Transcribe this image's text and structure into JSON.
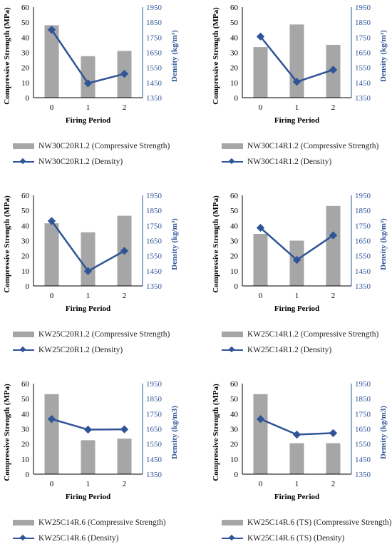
{
  "colors": {
    "bar": "#A6A6A6",
    "line": "#2F5597",
    "axis": "#000000",
    "right_axis_text": "#2F5597"
  },
  "chart_data": [
    {
      "type": "bar",
      "categories": [
        "0",
        "1",
        "2"
      ],
      "series": [
        {
          "name": "NW30C20R1.2 (Compressive Strength)",
          "kind": "bar",
          "axis": "left",
          "values": [
            48,
            27.5,
            31
          ]
        },
        {
          "name": "NW30C20R1.2 (Density)",
          "kind": "line",
          "axis": "right",
          "values": [
            1800,
            1445,
            1508
          ]
        }
      ],
      "xlabel": "Firing Period",
      "ylabel": "Compressive Strength (MPa)",
      "ylabel_right": "Density (kg/m³)",
      "ylim": [
        0,
        60
      ],
      "ylim_right": [
        1350,
        1950
      ],
      "yticks": [
        "0",
        "10",
        "20",
        "30",
        "40",
        "50",
        "60"
      ],
      "yticks_right": [
        "1350",
        "1450",
        "1550",
        "1650",
        "1750",
        "1850",
        "1950"
      ]
    },
    {
      "type": "bar",
      "categories": [
        "0",
        "1",
        "2"
      ],
      "series": [
        {
          "name": "NW30C14R1.2 (Compressive Strength)",
          "kind": "bar",
          "axis": "left",
          "values": [
            33.5,
            48.5,
            35
          ]
        },
        {
          "name": "NW30C14R1.2 (Density)",
          "kind": "line",
          "axis": "right",
          "values": [
            1755,
            1455,
            1535
          ]
        }
      ],
      "xlabel": "Firing Period",
      "ylabel": "Compressive Strength (MPa)",
      "ylabel_right": "Density (kg/m³)",
      "ylim": [
        0,
        60
      ],
      "ylim_right": [
        1350,
        1950
      ],
      "yticks": [
        "0",
        "10",
        "20",
        "30",
        "40",
        "50",
        "60"
      ],
      "yticks_right": [
        "1350",
        "1450",
        "1550",
        "1650",
        "1750",
        "1850",
        "1950"
      ]
    },
    {
      "type": "bar",
      "categories": [
        "0",
        "1",
        "2"
      ],
      "series": [
        {
          "name": "KW25C20R1.2 (Compressive Strength)",
          "kind": "bar",
          "axis": "left",
          "values": [
            41.5,
            35.5,
            46.5
          ]
        },
        {
          "name": "KW25C20R1.2 (Density)",
          "kind": "line",
          "axis": "right",
          "values": [
            1780,
            1448,
            1582
          ]
        }
      ],
      "xlabel": "Firing Period",
      "ylabel": "Compressive Strength (MPa)",
      "ylabel_right": "Density (kg/m³)",
      "ylim": [
        0,
        60
      ],
      "ylim_right": [
        1350,
        1950
      ],
      "yticks": [
        "0",
        "10",
        "20",
        "30",
        "40",
        "50",
        "60"
      ],
      "yticks_right": [
        "1350",
        "1450",
        "1550",
        "1650",
        "1750",
        "1850",
        "1950"
      ]
    },
    {
      "type": "bar",
      "categories": [
        "0",
        "1",
        "2"
      ],
      "series": [
        {
          "name": "KW25C14R1.2 (Compressive Strength)",
          "kind": "bar",
          "axis": "left",
          "values": [
            34.5,
            30,
            53
          ]
        },
        {
          "name": "KW25C14R1.2 (Density)",
          "kind": "line",
          "axis": "right",
          "values": [
            1735,
            1522,
            1685
          ]
        }
      ],
      "xlabel": "Firing Period",
      "ylabel": "Compressive Strength (MPa)",
      "ylabel_right": "Density (kg/m³)",
      "ylim": [
        0,
        60
      ],
      "ylim_right": [
        1350,
        1950
      ],
      "yticks": [
        "0",
        "10",
        "20",
        "30",
        "40",
        "50",
        "60"
      ],
      "yticks_right": [
        "1350",
        "1450",
        "1550",
        "1650",
        "1750",
        "1850",
        "1950"
      ]
    },
    {
      "type": "bar",
      "categories": [
        "0",
        "1",
        "2"
      ],
      "series": [
        {
          "name": "KW25C14R.6 (Compressive Strength)",
          "kind": "bar",
          "axis": "left",
          "values": [
            53,
            22.5,
            23.5
          ]
        },
        {
          "name": "KW25C14R.6 (Density)",
          "kind": "line",
          "axis": "right",
          "values": [
            1715,
            1645,
            1647
          ]
        }
      ],
      "xlabel": "Firing Period",
      "ylabel": "Compressive Strength (MPa)",
      "ylabel_right": "Density (kg/m3)",
      "ylim": [
        0,
        60
      ],
      "ylim_right": [
        1350,
        1950
      ],
      "yticks": [
        "0",
        "10",
        "20",
        "30",
        "40",
        "50",
        "60"
      ],
      "yticks_right": [
        "1350",
        "1450",
        "1550",
        "1650",
        "1750",
        "1850",
        "1950"
      ]
    },
    {
      "type": "bar",
      "categories": [
        "0",
        "1",
        "2"
      ],
      "series": [
        {
          "name": "KW25C14R.6 (TS) (Compressive Strength)",
          "kind": "bar",
          "axis": "left",
          "values": [
            53,
            20.5,
            20.5
          ]
        },
        {
          "name": "KW25C14R.6 (TS) (Density)",
          "kind": "line",
          "axis": "right",
          "values": [
            1715,
            1612,
            1622
          ]
        }
      ],
      "xlabel": "Firing Period",
      "ylabel": "Compressive Strength (MPa)",
      "ylabel_right": "Density (kg/m3)",
      "ylim": [
        0,
        60
      ],
      "ylim_right": [
        1350,
        1950
      ],
      "yticks": [
        "0",
        "10",
        "20",
        "30",
        "40",
        "50",
        "60"
      ],
      "yticks_right": [
        "1350",
        "1450",
        "1550",
        "1650",
        "1750",
        "1850",
        "1950"
      ]
    }
  ]
}
